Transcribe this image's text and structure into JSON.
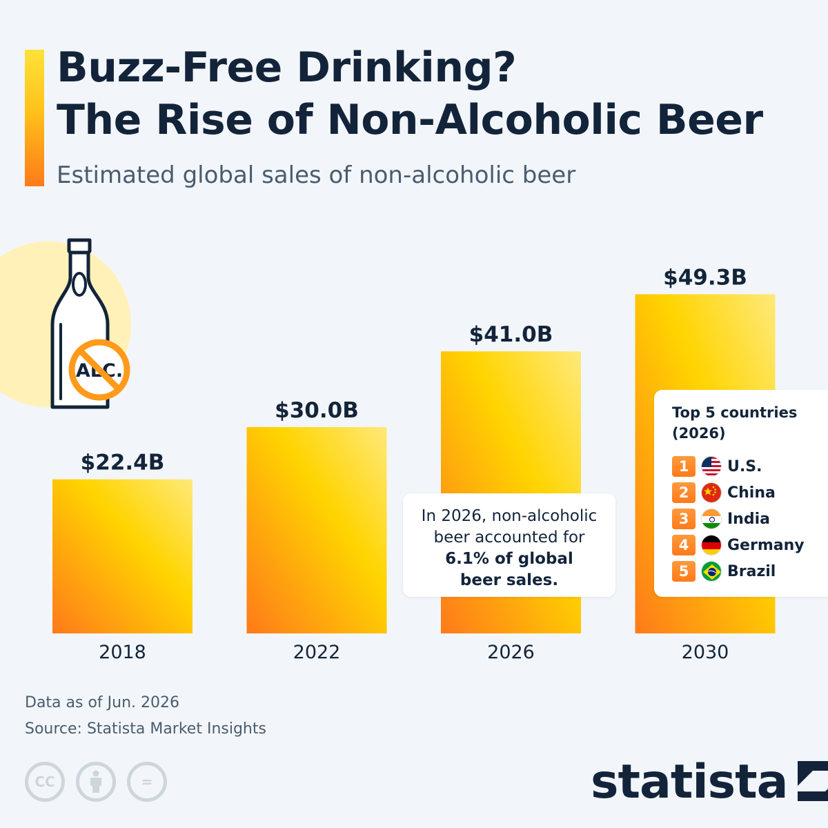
{
  "header": {
    "title_line1": "Buzz-Free Drinking?",
    "title_line2": "The Rise of Non-Alcoholic Beer",
    "subtitle": "Estimated global sales of non-alcoholic beer"
  },
  "illustration": {
    "icon": "no-alcohol-bottle-icon",
    "badge_text": "ALC."
  },
  "chart_data": {
    "type": "bar",
    "categories": [
      "2018",
      "2022",
      "2026",
      "2030"
    ],
    "values": [
      22.4,
      30.0,
      41.0,
      49.3
    ],
    "value_labels": [
      "$22.4B",
      "$30.0B",
      "$41.0B",
      "$49.3B"
    ],
    "unit": "billion USD",
    "ylim": [
      0,
      60
    ],
    "grid": false,
    "bar_gradient": [
      "#ffe97a",
      "#ffd400",
      "#ff7a1a"
    ]
  },
  "callout": {
    "line1": "In 2026, non-alcoholic",
    "line2": "beer accounted for",
    "bold1": "6.1% of global",
    "bold2": "beer sales."
  },
  "top_countries": {
    "title_line1": "Top 5 countries",
    "title_line2": "(2026)",
    "items": [
      {
        "rank": "1",
        "name": "U.S.",
        "flag": "us-flag-icon"
      },
      {
        "rank": "2",
        "name": "China",
        "flag": "china-flag-icon"
      },
      {
        "rank": "3",
        "name": "India",
        "flag": "india-flag-icon"
      },
      {
        "rank": "4",
        "name": "Germany",
        "flag": "germany-flag-icon"
      },
      {
        "rank": "5",
        "name": "Brazil",
        "flag": "brazil-flag-icon"
      }
    ]
  },
  "footer": {
    "note": "Data as of Jun. 2026",
    "source": "Source: Statista Market Insights"
  },
  "license_icons": {
    "cc": "CC",
    "equals": "="
  },
  "brand": {
    "name": "statista"
  },
  "colors": {
    "background": "#f2f6fa",
    "text_dark": "#13243a",
    "accent_orange": "#ff7a1a",
    "accent_yellow": "#ffd400"
  }
}
